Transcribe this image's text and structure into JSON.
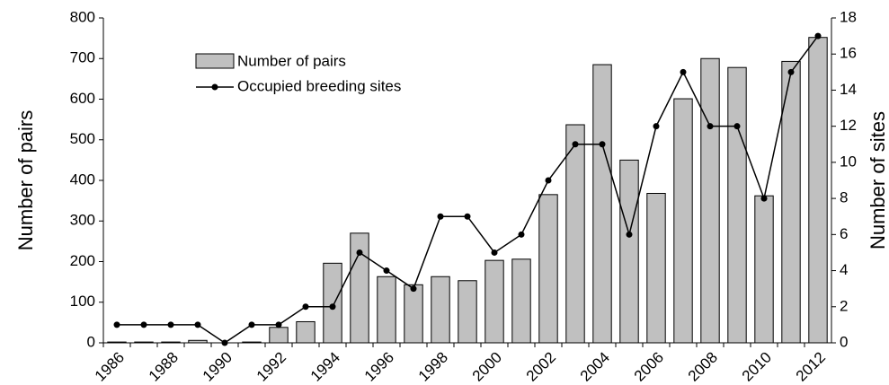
{
  "chart_data": {
    "type": "bar",
    "categories": [
      "1986",
      null,
      "1988",
      null,
      "1990",
      null,
      "1992",
      null,
      "1994",
      null,
      "1996",
      null,
      "1998",
      null,
      "2000",
      null,
      "2002",
      null,
      "2004",
      null,
      "2006",
      null,
      "2008",
      null,
      "2010",
      null,
      "2012"
    ],
    "series": [
      {
        "name": "Number of pairs",
        "color": "#c0c0c0",
        "values": [
          2,
          2,
          2,
          6,
          0,
          2,
          38,
          52,
          196,
          270,
          163,
          143,
          163,
          153,
          203,
          206,
          365,
          537,
          685,
          450,
          368,
          601,
          700,
          678,
          362,
          693,
          752
        ]
      },
      {
        "name": "Occupied breeding sites",
        "color": "#000000",
        "type": "line",
        "axis": "y2",
        "values": [
          1,
          1,
          1,
          1,
          0,
          1,
          1,
          2,
          2,
          5,
          4,
          3,
          7,
          7,
          5,
          6,
          9,
          11,
          11,
          6,
          12,
          15,
          12,
          12,
          8,
          15,
          17
        ]
      }
    ],
    "ylabel": "Number of pairs",
    "y2label": "Number of sites",
    "ylim": [
      0,
      800
    ],
    "yticks": [
      0,
      100,
      200,
      300,
      400,
      500,
      600,
      700,
      800
    ],
    "y2lim": [
      0,
      18
    ],
    "y2ticks": [
      0,
      2,
      4,
      6,
      8,
      10,
      12,
      14,
      16,
      18
    ]
  }
}
